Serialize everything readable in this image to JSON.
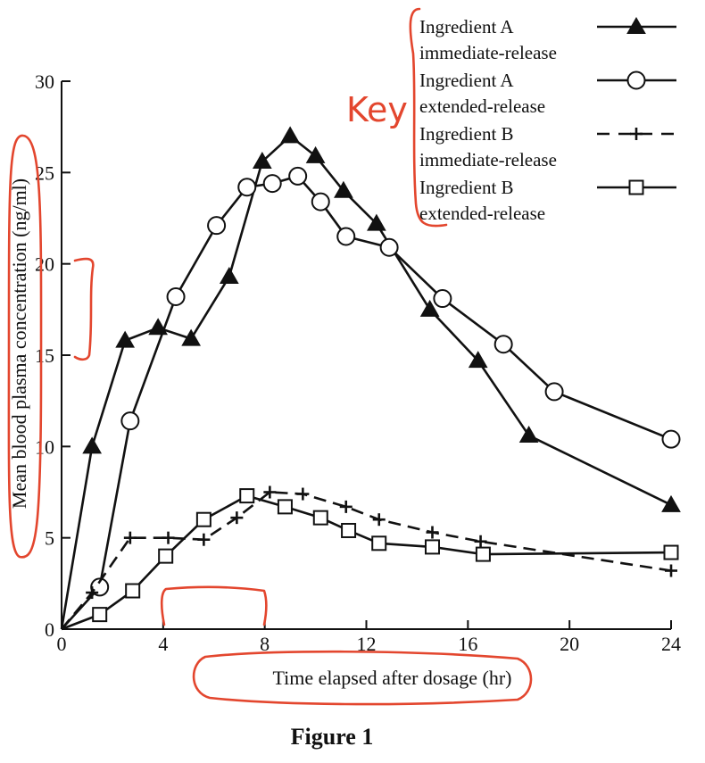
{
  "caption": "Figure 1",
  "annotation_text": "Key",
  "colors": {
    "ink": "#111111",
    "annotation": "#e3462e",
    "background": "#ffffff"
  },
  "chart_data": {
    "type": "line",
    "title": "",
    "xlabel": "Time elapsed after dosage (hr)",
    "ylabel": "Mean blood plasma concentration (ng/ml)",
    "xlim": [
      0,
      24
    ],
    "ylim": [
      0,
      30
    ],
    "xticks": [
      0,
      4,
      8,
      12,
      16,
      20,
      24
    ],
    "yticks": [
      0,
      5,
      10,
      15,
      20,
      25,
      30
    ],
    "grid": false,
    "legend_position": "top-right",
    "series": [
      {
        "name": "Ingredient A immediate-release",
        "label_lines": [
          "Ingredient A",
          "immediate-release"
        ],
        "marker": "filled-triangle",
        "line_style": "solid",
        "x": [
          0,
          1.2,
          2.5,
          3.8,
          5.1,
          6.6,
          7.9,
          9.0,
          10.0,
          11.1,
          12.4,
          14.5,
          16.4,
          18.4,
          24
        ],
        "y": [
          0,
          10.0,
          15.8,
          16.5,
          15.9,
          19.3,
          25.6,
          27.0,
          25.9,
          24.0,
          22.2,
          17.5,
          14.7,
          10.6,
          6.8
        ]
      },
      {
        "name": "Ingredient A extended-release",
        "label_lines": [
          "Ingredient A",
          "extended-release"
        ],
        "marker": "open-circle",
        "line_style": "solid",
        "x": [
          0,
          1.5,
          2.7,
          4.5,
          6.1,
          7.3,
          8.3,
          9.3,
          10.2,
          11.2,
          12.9,
          15.0,
          17.4,
          19.4,
          24
        ],
        "y": [
          0,
          2.3,
          11.4,
          18.2,
          22.1,
          24.2,
          24.4,
          24.8,
          23.4,
          21.5,
          20.9,
          18.1,
          15.6,
          13.0,
          10.4
        ]
      },
      {
        "name": "Ingredient B immediate-release",
        "label_lines": [
          "Ingredient B",
          "immediate-release"
        ],
        "marker": "plus",
        "line_style": "dashed",
        "x": [
          0,
          1.2,
          2.7,
          4.2,
          5.6,
          6.9,
          8.2,
          9.5,
          11.2,
          12.5,
          14.6,
          16.5,
          24
        ],
        "y": [
          0,
          2.0,
          5.0,
          5.0,
          4.9,
          6.1,
          7.5,
          7.4,
          6.7,
          6.0,
          5.3,
          4.8,
          3.2
        ]
      },
      {
        "name": "Ingredient B extended-release",
        "label_lines": [
          "Ingredient B",
          "extended-release"
        ],
        "marker": "open-square",
        "line_style": "solid",
        "x": [
          0,
          1.5,
          2.8,
          4.1,
          5.6,
          7.3,
          8.8,
          10.2,
          11.3,
          12.5,
          14.6,
          16.6,
          24
        ],
        "y": [
          0,
          0.8,
          2.1,
          4.0,
          6.0,
          7.3,
          6.7,
          6.1,
          5.4,
          4.7,
          4.5,
          4.1,
          4.2
        ]
      }
    ]
  }
}
